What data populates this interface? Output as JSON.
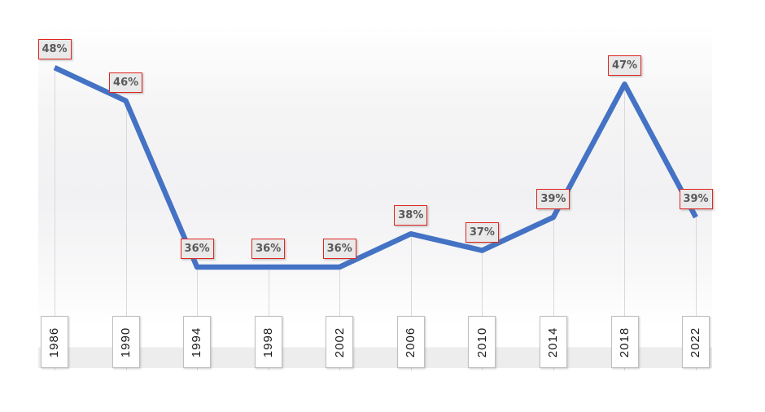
{
  "chart_data": {
    "type": "line",
    "title": "",
    "xlabel": "",
    "ylabel": "",
    "legend": "none",
    "grid": "vertical-drop-lines-only",
    "categories": [
      "1986",
      "1990",
      "1994",
      "1998",
      "2002",
      "2006",
      "2010",
      "2014",
      "2018",
      "2022"
    ],
    "values": [
      48,
      46,
      36,
      36,
      36,
      38,
      37,
      39,
      47,
      39
    ],
    "point_labels": [
      "48%",
      "46%",
      "36%",
      "36%",
      "36%",
      "38%",
      "37%",
      "39%",
      "47%",
      "39%"
    ],
    "unit": "%",
    "y_implied_range": [
      30,
      50
    ],
    "colors": {
      "line": "#4472C4",
      "drop_line": "#D9D9D9",
      "data_label_fill": "#E9E9E9",
      "data_label_border": "#E02420",
      "data_label_text": "#595959",
      "year_box_fill": "#FFFFFF",
      "year_box_border": "#BFBFBF",
      "year_text": "#1A1A1A"
    }
  }
}
